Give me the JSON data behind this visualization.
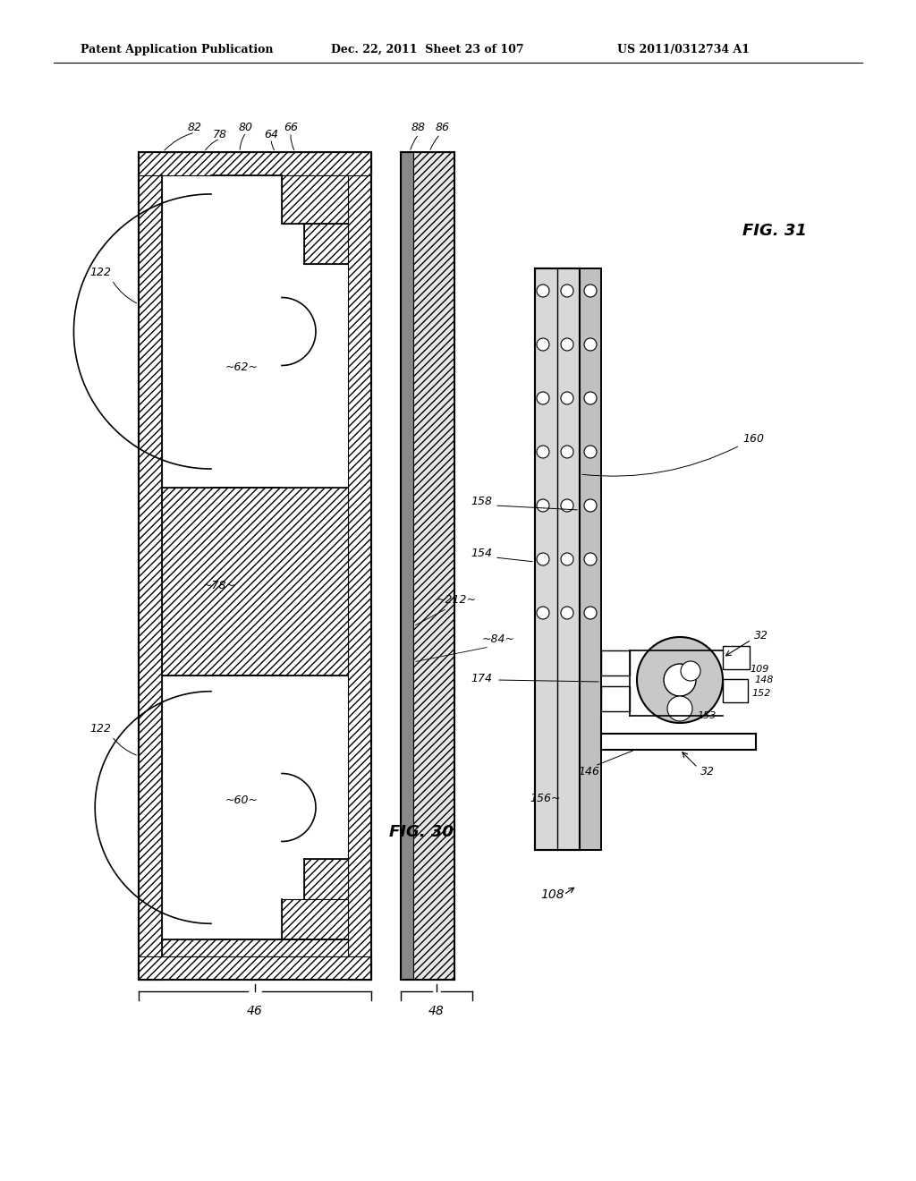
{
  "bg_color": "#ffffff",
  "line_color": "#000000",
  "title_left": "Patent Application Publication",
  "title_center": "Dec. 22, 2011  Sheet 23 of 107",
  "title_right": "US 2011/0312734 A1",
  "fig_label_30": "FIG. 30",
  "fig_label_31": "FIG. 31"
}
